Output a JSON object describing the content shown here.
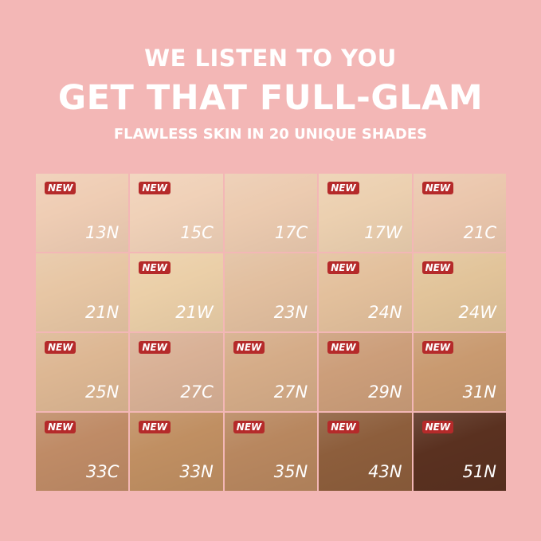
{
  "header": {
    "line1": "WE LISTEN TO YOU",
    "line2": "GET THAT FULL-GLAM",
    "line3": "FLAWLESS SKIN IN 20 UNIQUE SHADES"
  },
  "badge_label": "NEW",
  "shades": [
    {
      "name": "13N",
      "color": "#efcdb4",
      "new": true
    },
    {
      "name": "15C",
      "color": "#f0d1b8",
      "new": true
    },
    {
      "name": "17C",
      "color": "#eccbb0",
      "new": false
    },
    {
      "name": "17W",
      "color": "#ecd0b0",
      "new": true
    },
    {
      "name": "21C",
      "color": "#ebc7ad",
      "new": true
    },
    {
      "name": "21N",
      "color": "#e7c6a4",
      "new": false
    },
    {
      "name": "21W",
      "color": "#ebcfa8",
      "new": true
    },
    {
      "name": "23N",
      "color": "#e2bf9f",
      "new": false
    },
    {
      "name": "24N",
      "color": "#e3c09c",
      "new": true
    },
    {
      "name": "24W",
      "color": "#e2c49a",
      "new": true
    },
    {
      "name": "25N",
      "color": "#ddb793",
      "new": true
    },
    {
      "name": "27C",
      "color": "#d9b196",
      "new": true
    },
    {
      "name": "27N",
      "color": "#d5ac88",
      "new": true
    },
    {
      "name": "29N",
      "color": "#cc9e7a",
      "new": true
    },
    {
      "name": "31N",
      "color": "#c99a70",
      "new": true
    },
    {
      "name": "33C",
      "color": "#bf8b66",
      "new": true
    },
    {
      "name": "33N",
      "color": "#c08f62",
      "new": true
    },
    {
      "name": "35N",
      "color": "#b8875f",
      "new": true
    },
    {
      "name": "43N",
      "color": "#8d5e3c",
      "new": true
    },
    {
      "name": "51N",
      "color": "#5a3120",
      "new": true
    }
  ]
}
